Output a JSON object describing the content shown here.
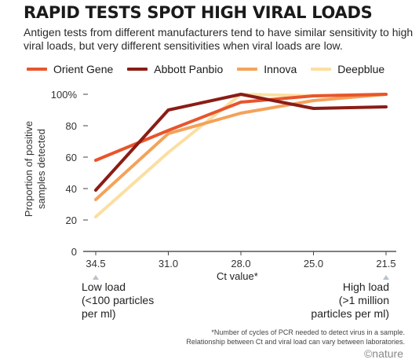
{
  "chart_data": {
    "type": "line",
    "title": "RAPID TESTS SPOT HIGH VIRAL LOADS",
    "subtitle": "Antigen tests from different manufacturers tend to have similar sensitivity to high viral loads, but very different sensitivities when viral loads are low.",
    "xlabel": "Ct value*",
    "ylabel": [
      "Proportion of positive",
      "samples detected"
    ],
    "categories": [
      "34.5",
      "31.0",
      "28.0",
      "25.0",
      "21.5"
    ],
    "y_ticks": [
      "0",
      "20",
      "40",
      "60",
      "80",
      "100%"
    ],
    "ylim": [
      0,
      100
    ],
    "series": [
      {
        "name": "Orient Gene",
        "color": "#e8552c",
        "values": [
          58,
          77,
          95,
          99,
          100
        ]
      },
      {
        "name": "Abbott Panbio",
        "color": "#8b1c16",
        "values": [
          39,
          90,
          100,
          91,
          92
        ]
      },
      {
        "name": "Innova",
        "color": "#f4a25a",
        "values": [
          33,
          75,
          88,
          96,
          100
        ]
      },
      {
        "name": "Deepblue",
        "color": "#fbdfa1",
        "values": [
          22,
          63,
          100,
          99,
          100
        ]
      }
    ],
    "legend_position": "top",
    "grid": false
  },
  "annotations": {
    "low": [
      "Low load",
      "(<100 particles",
      "per ml)"
    ],
    "high": [
      "High load",
      "(>1 million",
      "particles per ml)"
    ]
  },
  "footnote": [
    "*Number of cycles of PCR needed to detect virus in a sample.",
    "Relationship between Ct and viral load can vary between laboratories."
  ],
  "brand": "©nature"
}
